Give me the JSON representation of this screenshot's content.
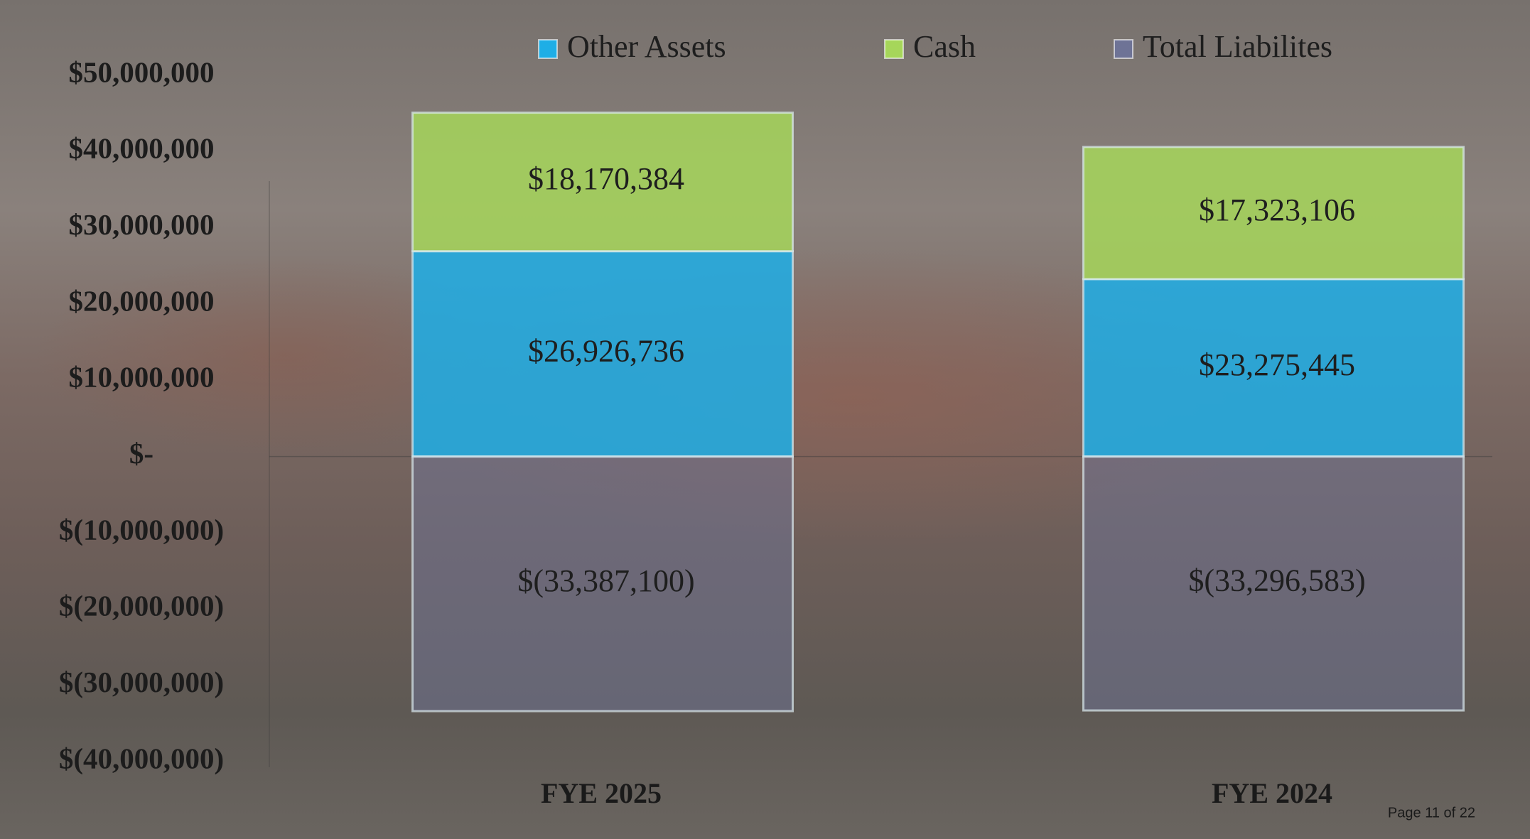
{
  "chart_data": {
    "type": "stacked_bar",
    "categories": [
      "FYE 2025",
      "FYE 2024"
    ],
    "series": [
      {
        "name": "Other Assets",
        "color": "#1eaee6",
        "values": [
          26926736,
          23275445
        ],
        "value_labels": [
          "$26,926,736",
          "$23,275,445"
        ]
      },
      {
        "name": "Cash",
        "color": "#a6d65a",
        "values": [
          18170384,
          17323106
        ],
        "value_labels": [
          "$18,170,384",
          "$17,323,106"
        ]
      },
      {
        "name": "Total Liabilites",
        "color": "#6e7396",
        "values": [
          -33387100,
          -33296583
        ],
        "value_labels": [
          "$(33,387,100)",
          "$(33,296,583)"
        ]
      }
    ],
    "ylim": [
      -40000000,
      50000000
    ],
    "yticks": [
      {
        "value": -40000000,
        "label": "$(40,000,000)"
      },
      {
        "value": -30000000,
        "label": "$(30,000,000)"
      },
      {
        "value": -20000000,
        "label": "$(20,000,000)"
      },
      {
        "value": -10000000,
        "label": "$(10,000,000)"
      },
      {
        "value": 0,
        "label": "$-"
      },
      {
        "value": 10000000,
        "label": "$10,000,000"
      },
      {
        "value": 20000000,
        "label": "$20,000,000"
      },
      {
        "value": 30000000,
        "label": "$30,000,000"
      },
      {
        "value": 40000000,
        "label": "$40,000,000"
      },
      {
        "value": 50000000,
        "label": "$50,000,000"
      }
    ],
    "page_label": "Page 11 of 22"
  }
}
